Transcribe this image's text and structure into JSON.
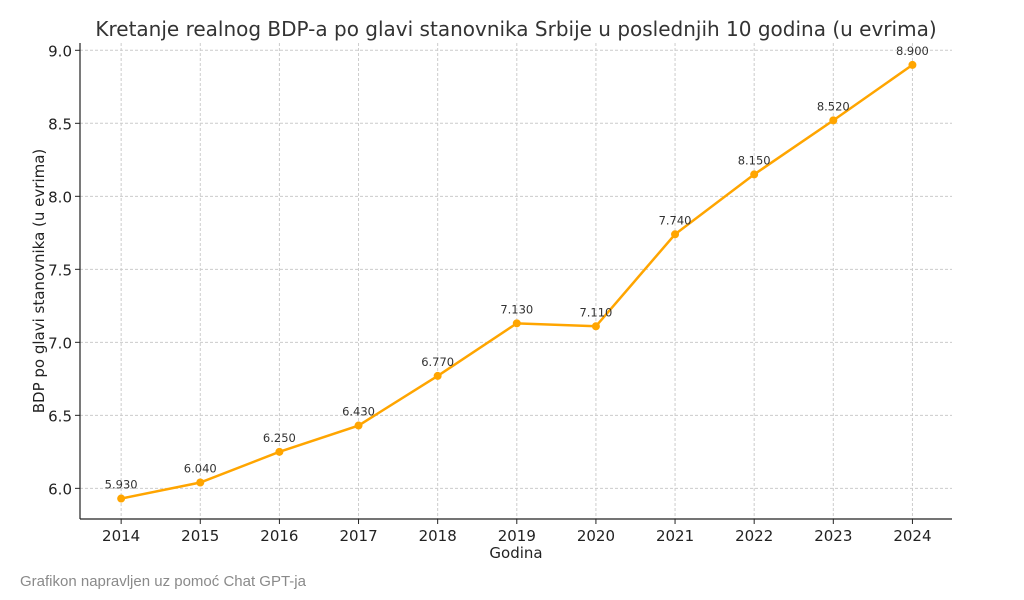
{
  "chart_data": {
    "type": "line",
    "title": "Kretanje realnog BDP-a po glavi stanovnika Srbije u poslednjih 10 godina (u evrima)",
    "xlabel": "Godina",
    "ylabel": "BDP po glavi stanovnika (u evrima)",
    "x": [
      2014,
      2015,
      2016,
      2017,
      2018,
      2019,
      2020,
      2021,
      2022,
      2023,
      2024
    ],
    "values": [
      5.93,
      6.04,
      6.25,
      6.43,
      6.77,
      7.13,
      7.11,
      7.74,
      8.15,
      8.52,
      8.9
    ],
    "data_labels": [
      "5.930",
      "6.040",
      "6.250",
      "6.430",
      "6.770",
      "7.130",
      "7.110",
      "7.740",
      "8.150",
      "8.520",
      "8.900"
    ],
    "yticks": [
      "6.0",
      "6.5",
      "7.0",
      "7.5",
      "8.0",
      "8.5",
      "9.0"
    ],
    "xticks": [
      "2014",
      "2015",
      "2016",
      "2017",
      "2018",
      "2019",
      "2020",
      "2021",
      "2022",
      "2023",
      "2024"
    ],
    "xlim": [
      2013.48,
      2024.5
    ],
    "ylim": [
      5.79,
      9.05
    ],
    "grid": true,
    "line_color": "#FFA500"
  },
  "caption": "Grafikon napravljen uz pomoć Chat GPT-ja"
}
